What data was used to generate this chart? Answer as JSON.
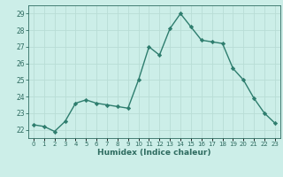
{
  "x": [
    0,
    1,
    2,
    3,
    4,
    5,
    6,
    7,
    8,
    9,
    10,
    11,
    12,
    13,
    14,
    15,
    16,
    17,
    18,
    19,
    20,
    21,
    22,
    23
  ],
  "y": [
    22.3,
    22.2,
    21.9,
    22.5,
    23.6,
    23.8,
    23.6,
    23.5,
    23.4,
    23.3,
    25.0,
    27.0,
    26.5,
    28.1,
    29.0,
    28.2,
    27.4,
    27.3,
    27.2,
    25.7,
    25.0,
    23.9,
    23.0,
    22.4
  ],
  "xlabel": "Humidex (Indice chaleur)",
  "ylim": [
    21.5,
    29.5
  ],
  "xlim": [
    -0.5,
    23.5
  ],
  "line_color": "#2e7d6e",
  "marker_color": "#2e7d6e",
  "bg_color": "#cceee8",
  "grid_color": "#b8ddd6",
  "text_color": "#2e6b60",
  "yticks": [
    22,
    23,
    24,
    25,
    26,
    27,
    28,
    29
  ],
  "xtick_labels": [
    "0",
    "1",
    "2",
    "3",
    "4",
    "5",
    "6",
    "7",
    "8",
    "9",
    "10",
    "11",
    "12",
    "13",
    "14",
    "15",
    "16",
    "17",
    "18",
    "19",
    "20",
    "21",
    "22",
    "23"
  ]
}
